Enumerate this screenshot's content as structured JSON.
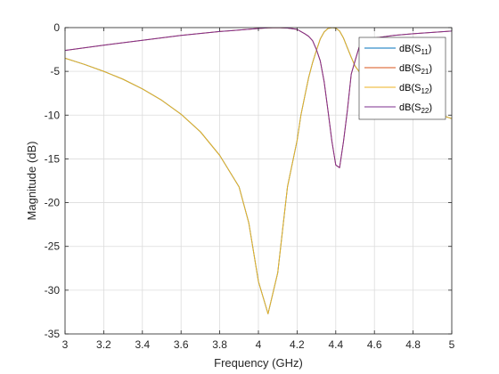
{
  "chart_data": {
    "type": "line",
    "title": "",
    "xlabel": "Frequency (GHz)",
    "ylabel": "Magnitude (dB)",
    "xlim": [
      3,
      5
    ],
    "ylim": [
      -35,
      0
    ],
    "xticks": [
      3,
      3.2,
      3.4,
      3.6,
      3.8,
      4,
      4.2,
      4.4,
      4.6,
      4.8,
      5
    ],
    "xtick_labels": [
      "3",
      "3.2",
      "3.4",
      "3.6",
      "3.8",
      "4",
      "4.2",
      "4.4",
      "4.6",
      "4.8",
      "5"
    ],
    "yticks": [
      0,
      -5,
      -10,
      -15,
      -20,
      -25,
      -30,
      -35
    ],
    "ytick_labels": [
      "0",
      "-5",
      "-10",
      "-15",
      "-20",
      "-25",
      "-30",
      "-35"
    ],
    "grid": true,
    "legend_position": "top-right",
    "series": [
      {
        "name": "dB(S11)",
        "legend_base": "dB(S",
        "legend_sub": "11",
        "legend_tail": ")",
        "color": "#0072BD",
        "x": [
          3.0,
          3.1,
          3.2,
          3.3,
          3.4,
          3.5,
          3.6,
          3.7,
          3.8,
          3.9,
          3.95,
          4.0,
          4.05,
          4.1,
          4.15,
          4.2,
          4.22,
          4.24,
          4.26,
          4.28,
          4.3,
          4.32,
          4.34,
          4.36,
          4.38,
          4.4,
          4.42,
          4.44,
          4.46,
          4.48,
          4.5,
          4.55,
          4.6,
          4.7,
          4.8,
          4.9,
          5.0
        ],
        "y": [
          -3.5,
          -4.2,
          -5.0,
          -5.9,
          -7.0,
          -8.3,
          -9.9,
          -11.9,
          -14.6,
          -18.2,
          -22.3,
          -29.0,
          -32.7,
          -28.0,
          -18.2,
          -12.9,
          -10.0,
          -7.8,
          -5.7,
          -4.0,
          -2.6,
          -1.3,
          -0.5,
          -0.1,
          0.0,
          -0.05,
          -0.4,
          -1.2,
          -2.3,
          -3.4,
          -4.4,
          -5.9,
          -7.0,
          -8.2,
          -9.0,
          -9.7,
          -10.4
        ]
      },
      {
        "name": "dB(S21)",
        "legend_base": "dB(S",
        "legend_sub": "21",
        "legend_tail": ")",
        "color": "#D95319",
        "x": [
          3.0,
          3.2,
          3.4,
          3.6,
          3.8,
          4.0,
          4.05,
          4.1,
          4.15,
          4.2,
          4.22,
          4.24,
          4.26,
          4.28,
          4.3,
          4.32,
          4.34,
          4.36,
          4.38,
          4.4,
          4.42,
          4.44,
          4.46,
          4.48,
          4.5,
          4.52,
          4.55,
          4.6,
          4.7,
          4.8,
          4.9,
          5.0
        ],
        "y": [
          -2.6,
          -2.0,
          -1.45,
          -0.9,
          -0.45,
          -0.1,
          -0.02,
          0.0,
          -0.05,
          -0.2,
          -0.45,
          -0.7,
          -1.0,
          -1.5,
          -2.5,
          -3.8,
          -6.2,
          -9.5,
          -13.0,
          -15.7,
          -16.0,
          -13.0,
          -9.5,
          -5.3,
          -3.8,
          -2.3,
          -1.5,
          -1.2,
          -0.9,
          -0.7,
          -0.55,
          -0.4
        ]
      },
      {
        "name": "dB(S12)",
        "legend_base": "dB(S",
        "legend_sub": "12",
        "legend_tail": ")",
        "color": "#EDB120",
        "x": [
          3.0,
          3.1,
          3.2,
          3.3,
          3.4,
          3.5,
          3.6,
          3.7,
          3.8,
          3.9,
          3.95,
          4.0,
          4.05,
          4.1,
          4.15,
          4.2,
          4.22,
          4.24,
          4.26,
          4.28,
          4.3,
          4.32,
          4.34,
          4.36,
          4.38,
          4.4,
          4.42,
          4.44,
          4.46,
          4.48,
          4.5,
          4.55,
          4.6,
          4.7,
          4.8,
          4.9,
          5.0
        ],
        "y": [
          -3.5,
          -4.2,
          -5.0,
          -5.9,
          -7.0,
          -8.3,
          -9.9,
          -11.9,
          -14.6,
          -18.2,
          -22.3,
          -29.0,
          -32.7,
          -28.0,
          -18.2,
          -12.9,
          -10.0,
          -7.8,
          -5.7,
          -4.0,
          -2.6,
          -1.3,
          -0.5,
          -0.1,
          0.0,
          -0.05,
          -0.4,
          -1.2,
          -2.3,
          -3.4,
          -4.4,
          -5.9,
          -7.0,
          -8.2,
          -9.0,
          -9.7,
          -10.4
        ]
      },
      {
        "name": "dB(S22)",
        "legend_base": "dB(S",
        "legend_sub": "22",
        "legend_tail": ")",
        "color": "#7E2F8E",
        "x": [
          3.0,
          3.2,
          3.4,
          3.6,
          3.8,
          4.0,
          4.05,
          4.1,
          4.15,
          4.2,
          4.22,
          4.24,
          4.26,
          4.28,
          4.3,
          4.32,
          4.34,
          4.36,
          4.38,
          4.4,
          4.42,
          4.44,
          4.46,
          4.48,
          4.5,
          4.52,
          4.55,
          4.6,
          4.7,
          4.8,
          4.9,
          5.0
        ],
        "y": [
          -2.6,
          -2.0,
          -1.45,
          -0.9,
          -0.45,
          -0.1,
          -0.02,
          0.0,
          -0.05,
          -0.2,
          -0.45,
          -0.7,
          -1.0,
          -1.5,
          -2.5,
          -3.8,
          -6.2,
          -9.5,
          -13.0,
          -15.7,
          -16.0,
          -13.0,
          -9.5,
          -5.3,
          -3.8,
          -2.3,
          -1.5,
          -1.2,
          -0.9,
          -0.7,
          -0.55,
          -0.4
        ]
      }
    ]
  }
}
